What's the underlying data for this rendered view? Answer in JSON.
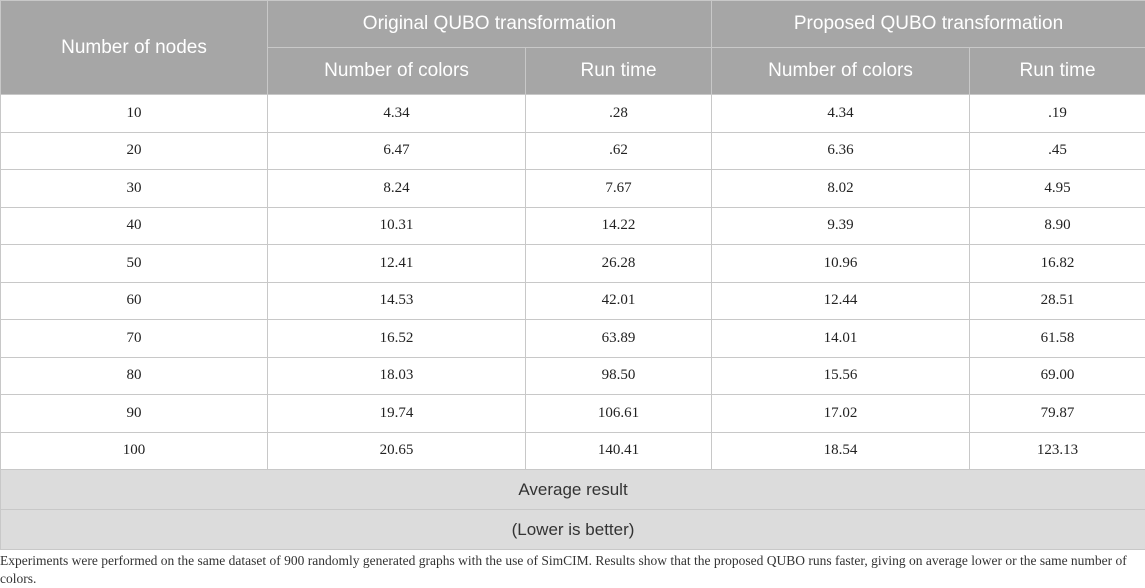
{
  "table": {
    "header": {
      "nodes": "Number of nodes",
      "original": "Original QUBO transformation",
      "proposed": "Proposed QUBO transformation",
      "colors": "Number of colors",
      "runtime": "Run time"
    },
    "rows": [
      {
        "nodes": "10",
        "orig_colors": "4.34",
        "orig_time": ".28",
        "prop_colors": "4.34",
        "prop_time": ".19"
      },
      {
        "nodes": "20",
        "orig_colors": "6.47",
        "orig_time": ".62",
        "prop_colors": "6.36",
        "prop_time": ".45"
      },
      {
        "nodes": "30",
        "orig_colors": "8.24",
        "orig_time": "7.67",
        "prop_colors": "8.02",
        "prop_time": "4.95"
      },
      {
        "nodes": "40",
        "orig_colors": "10.31",
        "orig_time": "14.22",
        "prop_colors": "9.39",
        "prop_time": "8.90"
      },
      {
        "nodes": "50",
        "orig_colors": "12.41",
        "orig_time": "26.28",
        "prop_colors": "10.96",
        "prop_time": "16.82"
      },
      {
        "nodes": "60",
        "orig_colors": "14.53",
        "orig_time": "42.01",
        "prop_colors": "12.44",
        "prop_time": "28.51"
      },
      {
        "nodes": "70",
        "orig_colors": "16.52",
        "orig_time": "63.89",
        "prop_colors": "14.01",
        "prop_time": "61.58"
      },
      {
        "nodes": "80",
        "orig_colors": "18.03",
        "orig_time": "98.50",
        "prop_colors": "15.56",
        "prop_time": "69.00"
      },
      {
        "nodes": "90",
        "orig_colors": "19.74",
        "orig_time": "106.61",
        "prop_colors": "17.02",
        "prop_time": "79.87"
      },
      {
        "nodes": "100",
        "orig_colors": "20.65",
        "orig_time": "140.41",
        "prop_colors": "18.54",
        "prop_time": "123.13"
      }
    ],
    "summary": {
      "average": "Average result",
      "note": "(Lower is better)"
    }
  },
  "footnote": "Experiments were performed on the same dataset of 900 randomly generated graphs with the use of SimCIM. Results show that the proposed QUBO runs faster, giving on average lower or the same number of colors."
}
